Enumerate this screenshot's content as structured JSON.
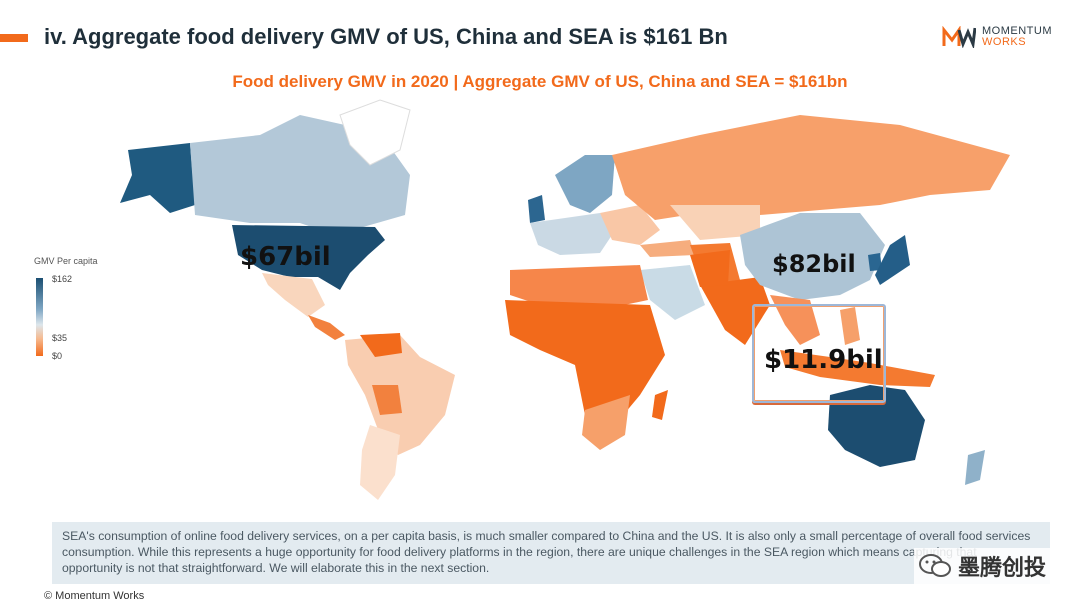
{
  "slide": {
    "title": "iv. Aggregate food delivery GMV of US, China and SEA is $161 Bn",
    "subtitle": "Food delivery GMV in 2020 | Aggregate GMV of US, China and SEA = $161bn"
  },
  "logo": {
    "line1": "MOMENTUM",
    "line2": "WORKS"
  },
  "legend": {
    "title": "GMV Per capita",
    "max": "$162",
    "mid": "$35",
    "min": "$0"
  },
  "map_labels": {
    "us": "$67bil",
    "china": "$82bil",
    "sea": "$11.9bil"
  },
  "note": {
    "text": "SEA's consumption of online food delivery services, on a per capita basis, is much smaller compared to China and the US. It is also only a small percentage of overall food services consumption. While this represents a huge opportunity for food delivery platforms in the region, there are unique challenges in the SEA region which means capturing that opportunity is not that straightforward. We will elaborate this in the next section."
  },
  "footer": "© Momentum Works",
  "watermark": "墨腾创投",
  "colors": {
    "accent": "#f26a1b",
    "high": "#1b4f72",
    "mid": "#8fb1c9",
    "low": "#f26a1b"
  }
}
